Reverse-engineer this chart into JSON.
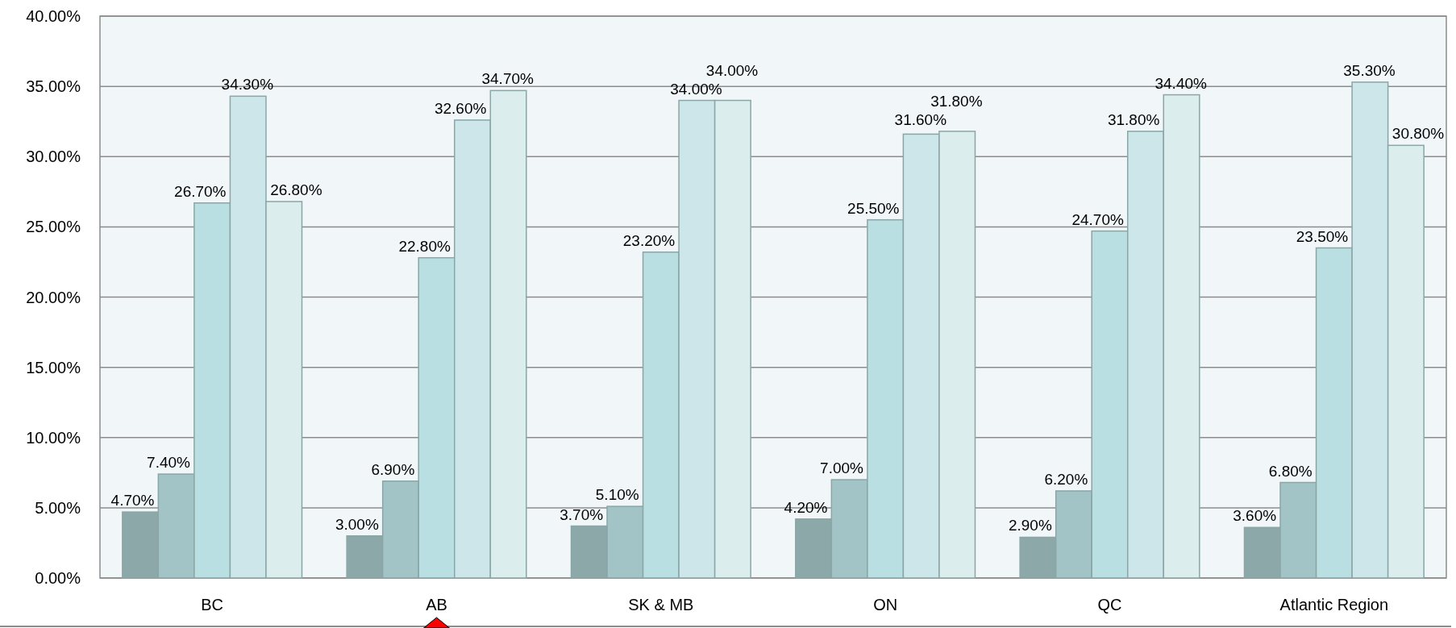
{
  "chart_data": {
    "type": "bar",
    "categories": [
      "BC",
      "AB",
      "SK & MB",
      "ON",
      "QC",
      "Atlantic Region"
    ],
    "series": [
      {
        "color": "#8ca8a9",
        "values": [
          4.7,
          3.0,
          3.7,
          4.2,
          2.9,
          3.6
        ],
        "value_labels": [
          "4.70%",
          "3.00%",
          "3.70%",
          "4.20%",
          "2.90%",
          "3.60%"
        ]
      },
      {
        "color": "#a3c4c6",
        "values": [
          7.4,
          6.9,
          5.1,
          7.0,
          6.2,
          6.8
        ],
        "value_labels": [
          "7.40%",
          "6.90%",
          "5.10%",
          "7.00%",
          "6.20%",
          "6.80%"
        ]
      },
      {
        "color": "#b9dfe2",
        "values": [
          26.7,
          22.8,
          23.2,
          25.5,
          24.7,
          23.5
        ],
        "value_labels": [
          "26.70%",
          "22.80%",
          "23.20%",
          "25.50%",
          "24.70%",
          "23.50%"
        ]
      },
      {
        "color": "#cde6ea",
        "values": [
          34.3,
          32.6,
          34.0,
          31.6,
          31.8,
          35.3
        ],
        "value_labels": [
          "34.30%",
          "32.60%",
          "34.00%",
          "31.60%",
          "31.80%",
          "35.30%"
        ]
      },
      {
        "color": "#dcedee",
        "values": [
          26.8,
          34.7,
          34.0,
          31.8,
          34.4,
          30.8
        ],
        "value_labels": [
          "26.80%",
          "34.70%",
          "34.00%",
          "31.80%",
          "34.40%",
          "30.80%"
        ]
      }
    ],
    "ylim": [
      0,
      40
    ],
    "yticks": [
      {
        "value": 0,
        "label": "0.00%"
      },
      {
        "value": 5,
        "label": "5.00%"
      },
      {
        "value": 10,
        "label": "10.00%"
      },
      {
        "value": 15,
        "label": "15.00%"
      },
      {
        "value": 20,
        "label": "20.00%"
      },
      {
        "value": 25,
        "label": "25.00%"
      },
      {
        "value": 30,
        "label": "30.00%"
      },
      {
        "value": 35,
        "label": "35.00%"
      },
      {
        "value": 40,
        "label": "40.00%"
      }
    ],
    "grid": "y"
  }
}
